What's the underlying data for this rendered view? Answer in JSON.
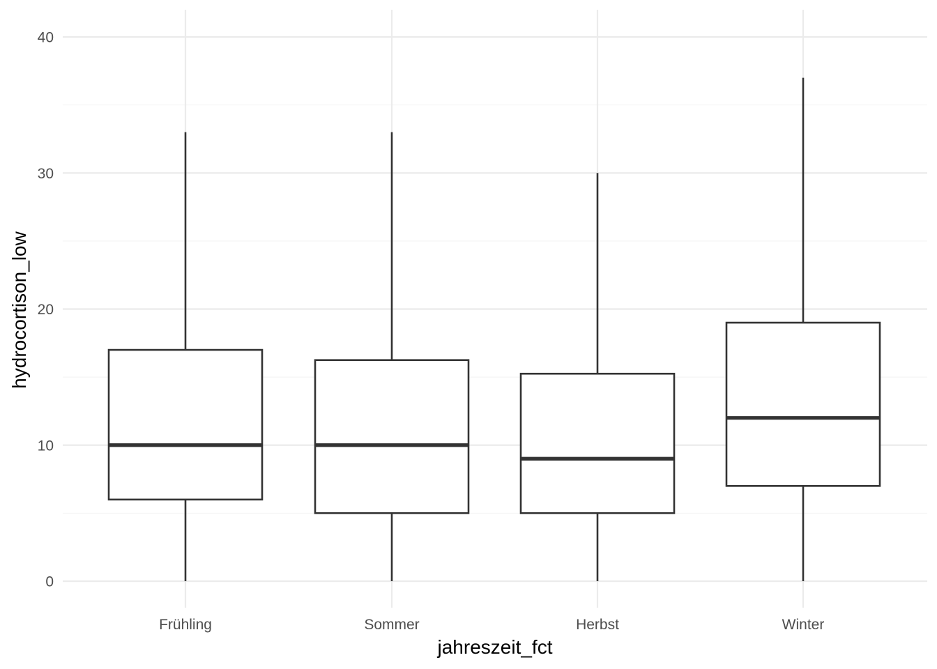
{
  "chart_data": {
    "type": "boxplot",
    "xlabel": "jahreszeit_fct",
    "ylabel": "hydrocortison_low",
    "ylim": [
      -1.8,
      41.9
    ],
    "y_ticks": [
      0,
      10,
      20,
      30,
      40
    ],
    "y_minor_ticks": [
      5,
      15,
      25,
      35
    ],
    "grid": true,
    "categories": [
      "Frühling",
      "Sommer",
      "Herbst",
      "Winter"
    ],
    "boxes": [
      {
        "category": "Frühling",
        "whisker_low": 0,
        "q1": 6,
        "median": 10,
        "q3": 17,
        "whisker_high": 33
      },
      {
        "category": "Sommer",
        "whisker_low": 0,
        "q1": 5,
        "median": 10,
        "q3": 16.25,
        "whisker_high": 33
      },
      {
        "category": "Herbst",
        "whisker_low": 0,
        "q1": 5,
        "median": 9,
        "q3": 15.25,
        "whisker_high": 30
      },
      {
        "category": "Winter",
        "whisker_low": 0,
        "q1": 7,
        "median": 12,
        "q3": 19,
        "whisker_high": 37
      }
    ],
    "colors": {
      "box_fill": "#ffffff",
      "box_line": "#333333",
      "grid": "#ebebeb",
      "tick_text": "#4d4d4d",
      "title_text": "#000000"
    }
  }
}
